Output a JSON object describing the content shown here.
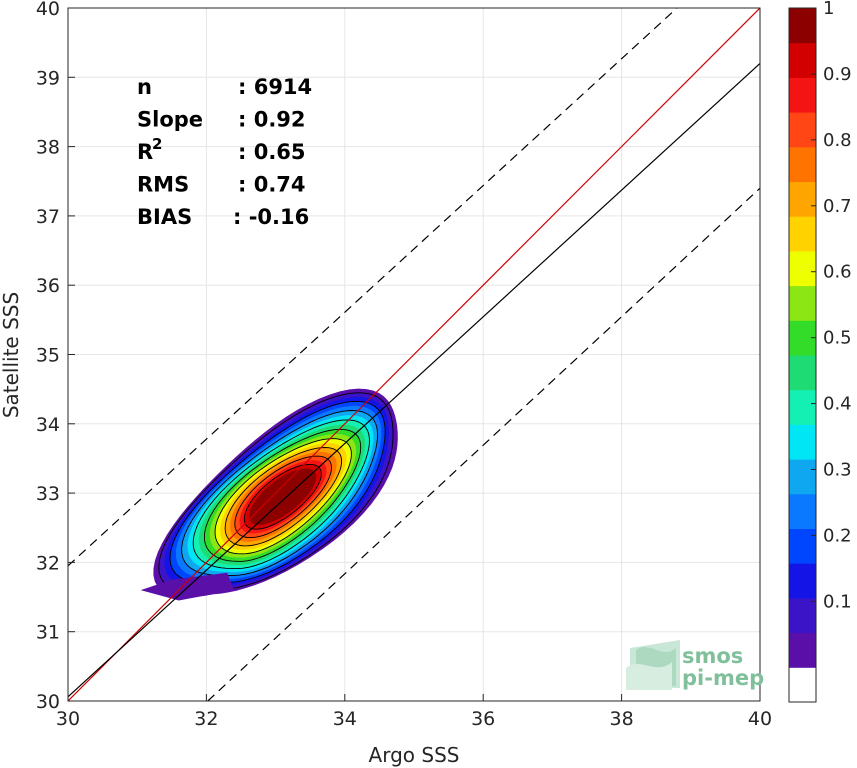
{
  "chart_data": {
    "type": "heatmap",
    "subtype": "density-contour-scatter",
    "title": "",
    "xlabel": "Argo SSS",
    "ylabel": "Satellite SSS",
    "xlim": [
      30,
      40
    ],
    "ylim": [
      30,
      40
    ],
    "xticks": [
      "30",
      "32",
      "34",
      "36",
      "38",
      "40"
    ],
    "yticks": [
      "30",
      "31",
      "32",
      "33",
      "34",
      "35",
      "36",
      "37",
      "38",
      "39",
      "40"
    ],
    "grid": true,
    "density_center": {
      "x": 33.1,
      "y": 32.95
    },
    "contour_levels": [
      0.05,
      0.1,
      0.15,
      0.2,
      0.25,
      0.3,
      0.35,
      0.4,
      0.45,
      0.5,
      0.55,
      0.6,
      0.65,
      0.7,
      0.75,
      0.8,
      0.85,
      0.9,
      0.95
    ],
    "lines": [
      {
        "name": "identity",
        "color": "#cc0000",
        "style": "solid",
        "points": [
          [
            30,
            30
          ],
          [
            40,
            40
          ]
        ]
      },
      {
        "name": "regression",
        "color": "#000000",
        "style": "solid",
        "points": [
          [
            30,
            30.06
          ],
          [
            40,
            39.2
          ]
        ]
      },
      {
        "name": "upper-bound",
        "color": "#000000",
        "style": "dashed",
        "points": [
          [
            30,
            31.95
          ],
          [
            38.8,
            40
          ]
        ]
      },
      {
        "name": "lower-bound",
        "color": "#000000",
        "style": "dashed",
        "points": [
          [
            32.02,
            30
          ],
          [
            40,
            37.4
          ]
        ]
      }
    ],
    "stats": [
      {
        "label": "n",
        "sup": "",
        "value": ": 6914"
      },
      {
        "label": "Slope",
        "sup": "",
        "value": ": 0.92"
      },
      {
        "label": "R",
        "sup": "2",
        "value": ": 0.65"
      },
      {
        "label": "RMS",
        "sup": "",
        "value": ": 0.74"
      },
      {
        "label": "BIAS",
        "sup": "",
        "value": ": -0.16"
      }
    ],
    "colorbar": {
      "tick_labels": [
        "0.1",
        "0.2",
        "0.3",
        "0.4",
        "0.5",
        "0.6",
        "0.7",
        "0.8",
        "0.9",
        "1"
      ],
      "tick_values": [
        0.1,
        0.2,
        0.3,
        0.4,
        0.5,
        0.6,
        0.7,
        0.8,
        0.9,
        1.0
      ],
      "colors": [
        "#ffffff",
        "#5a0fa8",
        "#3c14c8",
        "#1414e6",
        "#0046ff",
        "#0a78ff",
        "#0fa8f0",
        "#00e6f5",
        "#14f0b4",
        "#1edc73",
        "#32dc28",
        "#8ce614",
        "#eeff00",
        "#ffd200",
        "#ffa500",
        "#ff7300",
        "#ff4614",
        "#f51414",
        "#d20000",
        "#8c0000"
      ]
    }
  },
  "logo": {
    "line1": "smos",
    "line2": "pi-mep"
  }
}
